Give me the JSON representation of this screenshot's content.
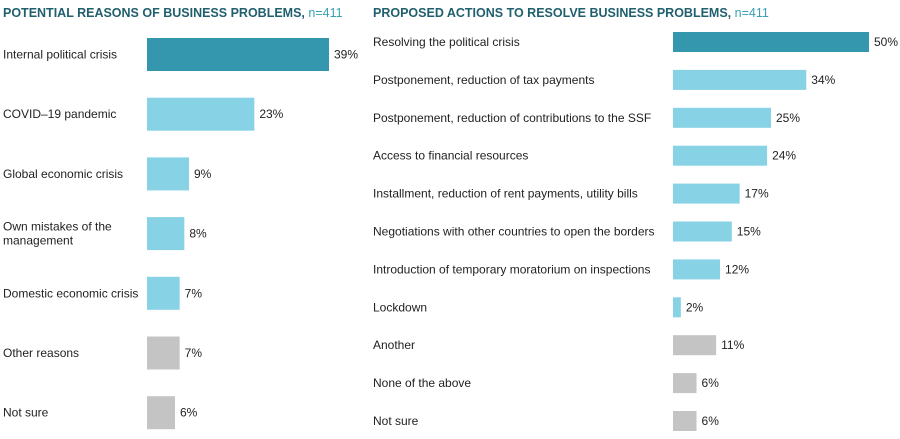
{
  "chart_data": [
    {
      "type": "bar",
      "orientation": "horizontal",
      "title": "POTENTIAL REASONS OF BUSINESS PROBLEMS,",
      "n_label": "n=411",
      "categories": [
        [
          "Internal political crisis"
        ],
        [
          "COVID–19 pandemic"
        ],
        [
          "Global economic crisis"
        ],
        [
          "Own mistakes of the",
          "management"
        ],
        [
          "Domestic economic crisis"
        ],
        [
          "Other reasons"
        ],
        [
          "Not sure"
        ]
      ],
      "values": [
        39,
        23,
        9,
        8,
        7,
        7,
        6
      ],
      "value_labels": [
        "39%",
        "23%",
        "9%",
        "8%",
        "7%",
        "7%",
        "6%"
      ],
      "colors": [
        "#3497ad",
        "#87d2e5",
        "#87d2e5",
        "#87d2e5",
        "#87d2e5",
        "#c4c4c4",
        "#c4c4c4"
      ],
      "unit": "%",
      "xlim": [
        0,
        39
      ]
    },
    {
      "type": "bar",
      "orientation": "horizontal",
      "title": "PROPOSED ACTIONS TO RESOLVE BUSINESS PROBLEMS,",
      "n_label": "n=411",
      "categories": [
        [
          "Resolving the political crisis"
        ],
        [
          "Postponement, reduction of tax payments"
        ],
        [
          "Postponement, reduction of contributions to the SSF"
        ],
        [
          "Access to financial resources"
        ],
        [
          "Installment, reduction of rent payments, utility bills"
        ],
        [
          "Negotiations with other countries to open the borders"
        ],
        [
          "Introduction of temporary moratorium on inspections"
        ],
        [
          "Lockdown"
        ],
        [
          "Another"
        ],
        [
          "None of the above"
        ],
        [
          "Not sure"
        ]
      ],
      "values": [
        50,
        34,
        25,
        24,
        17,
        15,
        12,
        2,
        11,
        6,
        6
      ],
      "value_labels": [
        "50%",
        "34%",
        "25%",
        "24%",
        "17%",
        "15%",
        "12%",
        "2%",
        "11%",
        "6%",
        "6%"
      ],
      "colors": [
        "#3497ad",
        "#87d2e5",
        "#87d2e5",
        "#87d2e5",
        "#87d2e5",
        "#87d2e5",
        "#87d2e5",
        "#87d2e5",
        "#c4c4c4",
        "#c4c4c4",
        "#c4c4c4"
      ],
      "unit": "%",
      "xlim": [
        0,
        50
      ]
    }
  ]
}
